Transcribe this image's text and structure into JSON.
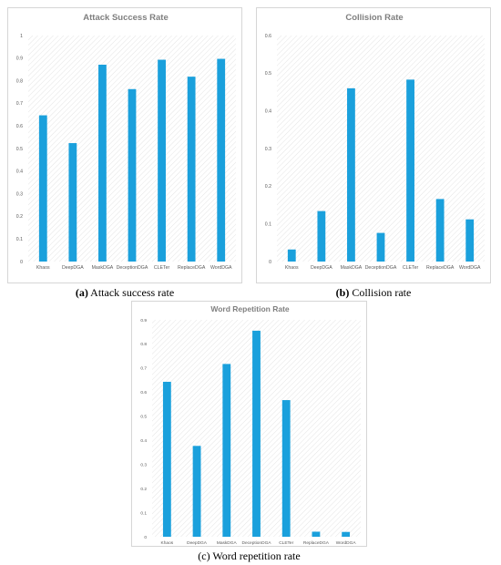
{
  "colors": {
    "bar": "#1aa0dc",
    "grid_hatch": "#e4e4e4",
    "axis_text": "#595959",
    "title": "#7f7f7f"
  },
  "panels": [
    {
      "caption_letter": "(a)",
      "caption_text": " Attack success rate"
    },
    {
      "caption_letter": "(b)",
      "caption_text": " Collision rate"
    },
    {
      "caption_letter": "",
      "caption_text": "(c) Word repetition rate"
    }
  ],
  "chart_data": [
    {
      "type": "bar",
      "title": "Attack Success Rate",
      "xlabel": "",
      "ylabel": "",
      "categories": [
        "Khaos",
        "DeepDGA",
        "MaskDGA",
        "DeceptionDGA",
        "CLETer",
        "ReplaceDGA",
        "WordDGA"
      ],
      "values": [
        0.647,
        0.524,
        0.871,
        0.763,
        0.893,
        0.818,
        0.897
      ],
      "ylim": [
        0,
        1
      ],
      "yticks": [
        "0",
        "0.1",
        "0.2",
        "0.3",
        "0.4",
        "0.5",
        "0.6",
        "0.7",
        "0.8",
        "0.9",
        "1"
      ],
      "grid": "hatched"
    },
    {
      "type": "bar",
      "title": "Collision Rate",
      "xlabel": "",
      "ylabel": "",
      "categories": [
        "Khaos",
        "DeepDGA",
        "MaskDGA",
        "DeceptionDGA",
        "CLETer",
        "ReplaceDGA",
        "WordDGA"
      ],
      "values": [
        0.032,
        0.134,
        0.46,
        0.076,
        0.483,
        0.166,
        0.112
      ],
      "ylim": [
        0,
        0.6
      ],
      "yticks": [
        "0",
        "0.1",
        "0.2",
        "0.3",
        "0.4",
        "0.5",
        "0.6"
      ],
      "grid": "hatched"
    },
    {
      "type": "bar",
      "title": "Word Repetition Rate",
      "xlabel": "",
      "ylabel": "",
      "categories": [
        "Khaos",
        "DeepDGA",
        "MaskDGA",
        "DeceptionDGA",
        "CLETer",
        "ReplaceDGA",
        "WordDGA"
      ],
      "values": [
        0.643,
        0.377,
        0.717,
        0.855,
        0.567,
        0.021,
        0.02
      ],
      "ylim": [
        0,
        0.9
      ],
      "yticks": [
        "0",
        "0.1",
        "0.2",
        "0.3",
        "0.4",
        "0.5",
        "0.6",
        "0.7",
        "0.8",
        "0.9"
      ],
      "grid": "hatched"
    }
  ]
}
